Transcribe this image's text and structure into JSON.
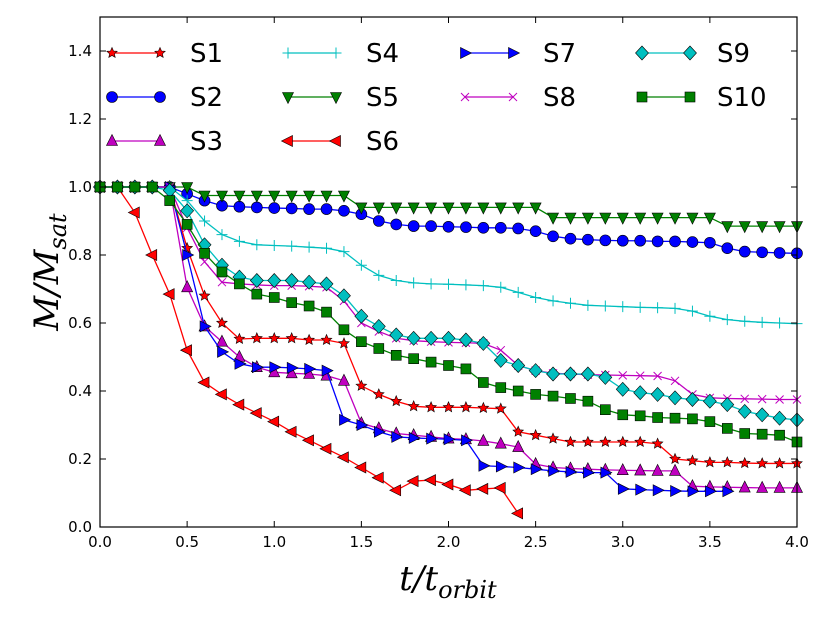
{
  "chart_data": {
    "type": "line",
    "title": "",
    "xlabel": "t/t_orbit",
    "xlabel_main": "t/t",
    "xlabel_sub": "orbit",
    "ylabel": "M/M_sat",
    "ylabel_main": "M/M",
    "ylabel_sub": "sat",
    "xlim": [
      0,
      4
    ],
    "ylim": [
      0,
      1.5
    ],
    "xticks": [
      "0.0",
      "0.5",
      "1.0",
      "1.5",
      "2.0",
      "2.5",
      "3.0",
      "3.5",
      "4.0"
    ],
    "yticks": [
      "0.0",
      "0.2",
      "0.4",
      "0.6",
      "0.8",
      "1.0",
      "1.2",
      "1.4"
    ],
    "grid": false,
    "legend_position": "top",
    "x_step": 0.1,
    "series": [
      {
        "name": "S1",
        "color": "#ff0000",
        "marker": "star",
        "values": [
          1,
          1,
          1,
          1,
          1,
          0.82,
          0.68,
          0.6,
          0.553,
          0.555,
          0.555,
          0.555,
          0.55,
          0.55,
          0.54,
          0.415,
          0.39,
          0.37,
          0.355,
          0.352,
          0.352,
          0.352,
          0.35,
          0.348,
          0.28,
          0.27,
          0.26,
          0.25,
          0.25,
          0.25,
          0.25,
          0.25,
          0.245,
          0.2,
          0.195,
          0.19,
          0.19,
          0.188,
          0.187,
          0.187,
          0.187
        ]
      },
      {
        "name": "S2",
        "color": "#0000ff",
        "marker": "circle",
        "values": [
          1,
          1,
          1,
          1,
          1,
          0.98,
          0.96,
          0.945,
          0.942,
          0.94,
          0.938,
          0.937,
          0.935,
          0.935,
          0.93,
          0.92,
          0.9,
          0.89,
          0.885,
          0.885,
          0.883,
          0.882,
          0.88,
          0.88,
          0.878,
          0.87,
          0.855,
          0.848,
          0.845,
          0.843,
          0.842,
          0.842,
          0.84,
          0.84,
          0.838,
          0.836,
          0.82,
          0.81,
          0.808,
          0.806,
          0.805
        ]
      },
      {
        "name": "S3",
        "color": "#bf00bf",
        "marker": "triangle-up",
        "values": [
          1,
          1,
          1,
          1,
          1,
          0.705,
          0.59,
          0.545,
          0.5,
          0.47,
          0.455,
          0.452,
          0.45,
          0.445,
          0.43,
          0.305,
          0.29,
          0.275,
          0.27,
          0.265,
          0.26,
          0.258,
          0.253,
          0.245,
          0.235,
          0.185,
          0.175,
          0.172,
          0.17,
          0.168,
          0.167,
          0.166,
          0.165,
          0.165,
          0.12,
          0.118,
          0.117,
          0.116,
          0.115,
          0.115,
          0.115
        ]
      },
      {
        "name": "S4",
        "color": "#00bfbf",
        "marker": "plus",
        "values": [
          1,
          1,
          1,
          1,
          1,
          0.96,
          0.9,
          0.86,
          0.84,
          0.83,
          0.828,
          0.826,
          0.823,
          0.82,
          0.81,
          0.77,
          0.74,
          0.725,
          0.718,
          0.715,
          0.714,
          0.712,
          0.71,
          0.705,
          0.69,
          0.675,
          0.665,
          0.658,
          0.652,
          0.65,
          0.648,
          0.646,
          0.645,
          0.643,
          0.635,
          0.62,
          0.61,
          0.605,
          0.602,
          0.6,
          0.598
        ]
      },
      {
        "name": "S5",
        "color": "#008000",
        "marker": "triangle-down",
        "values": [
          1,
          1,
          1,
          1,
          1,
          1,
          0.975,
          0.975,
          0.975,
          0.975,
          0.975,
          0.975,
          0.975,
          0.975,
          0.975,
          0.94,
          0.94,
          0.94,
          0.94,
          0.94,
          0.94,
          0.94,
          0.94,
          0.94,
          0.94,
          0.94,
          0.91,
          0.91,
          0.91,
          0.91,
          0.91,
          0.91,
          0.91,
          0.91,
          0.91,
          0.91,
          0.885,
          0.885,
          0.885,
          0.885,
          0.885
        ]
      },
      {
        "name": "S6",
        "color": "#ff0000",
        "marker": "triangle-left",
        "values": [
          1,
          1,
          0.925,
          0.8,
          0.685,
          0.52,
          0.425,
          0.39,
          0.36,
          0.335,
          0.31,
          0.28,
          0.255,
          0.23,
          0.205,
          0.175,
          0.145,
          0.108,
          0.135,
          0.138,
          0.125,
          0.108,
          0.112,
          0.115,
          0.04
        ]
      },
      {
        "name": "S7",
        "color": "#0000ff",
        "marker": "triangle-right",
        "values": [
          1,
          1,
          1,
          1,
          1,
          0.8,
          0.59,
          0.515,
          0.48,
          0.47,
          0.47,
          0.468,
          0.465,
          0.46,
          0.315,
          0.3,
          0.28,
          0.265,
          0.262,
          0.26,
          0.258,
          0.255,
          0.18,
          0.178,
          0.175,
          0.17,
          0.165,
          0.162,
          0.16,
          0.16,
          0.112,
          0.11,
          0.108,
          0.106,
          0.105,
          0.105,
          0.105
        ]
      },
      {
        "name": "S8",
        "color": "#bf00bf",
        "marker": "x",
        "values": [
          1,
          1,
          1,
          1,
          1,
          0.88,
          0.78,
          0.72,
          0.715,
          0.712,
          0.71,
          0.71,
          0.708,
          0.705,
          0.665,
          0.6,
          0.575,
          0.555,
          0.548,
          0.545,
          0.543,
          0.542,
          0.54,
          0.52,
          0.475,
          0.46,
          0.452,
          0.45,
          0.448,
          0.447,
          0.446,
          0.445,
          0.444,
          0.43,
          0.39,
          0.38,
          0.378,
          0.377,
          0.376,
          0.375,
          0.375
        ]
      },
      {
        "name": "S9",
        "color": "#00bfbf",
        "marker": "diamond",
        "values": [
          1,
          1,
          1,
          1,
          0.99,
          0.93,
          0.83,
          0.77,
          0.735,
          0.725,
          0.725,
          0.725,
          0.72,
          0.715,
          0.68,
          0.62,
          0.59,
          0.565,
          0.555,
          0.555,
          0.555,
          0.55,
          0.54,
          0.49,
          0.475,
          0.46,
          0.45,
          0.45,
          0.45,
          0.44,
          0.405,
          0.395,
          0.39,
          0.38,
          0.375,
          0.37,
          0.36,
          0.34,
          0.33,
          0.32,
          0.315
        ]
      },
      {
        "name": "S10",
        "color": "#008000",
        "marker": "square",
        "values": [
          1,
          1,
          1,
          1,
          0.96,
          0.89,
          0.805,
          0.75,
          0.715,
          0.685,
          0.675,
          0.66,
          0.65,
          0.632,
          0.58,
          0.545,
          0.525,
          0.505,
          0.495,
          0.485,
          0.475,
          0.465,
          0.425,
          0.41,
          0.4,
          0.39,
          0.385,
          0.378,
          0.37,
          0.345,
          0.33,
          0.327,
          0.322,
          0.32,
          0.318,
          0.31,
          0.29,
          0.275,
          0.273,
          0.27,
          0.25
        ]
      }
    ]
  }
}
